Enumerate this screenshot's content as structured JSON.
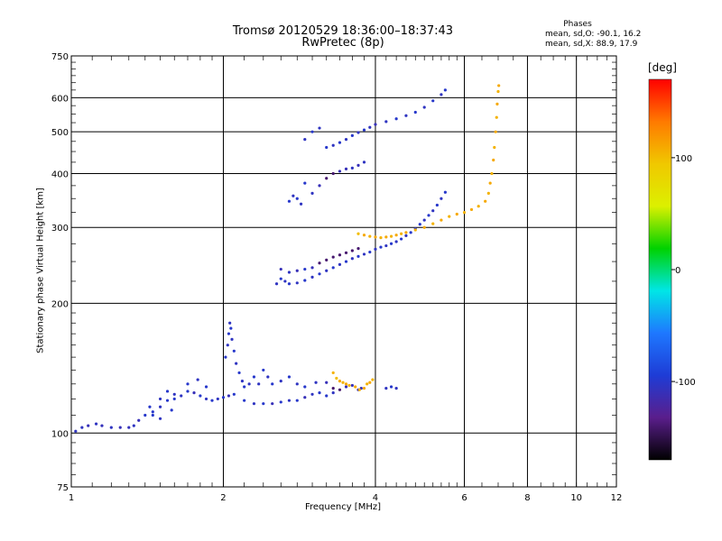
{
  "chart_data": {
    "type": "scatter",
    "title": "Tromsø 20120529 18:36:00–18:37:43",
    "subtitle": "RwPretec (8p)",
    "xlabel": "Frequency [MHz]",
    "ylabel": "Stationary phase Virtual Height [km]",
    "xscale": "log",
    "yscale": "log",
    "xlim": [
      1,
      12
    ],
    "ylim": [
      75,
      750
    ],
    "x_ticks": [
      "1",
      "2",
      "4",
      "6",
      "8",
      "10",
      "12"
    ],
    "y_ticks": [
      "75",
      "100",
      "200",
      "300",
      "400",
      "500",
      "600",
      "750"
    ],
    "grid": true,
    "color_scale": {
      "label": "[deg]",
      "min": -170,
      "max": 170,
      "ticks": [
        "100",
        "0",
        "-100"
      ],
      "palette": [
        "#000000",
        "#5a1e8c",
        "#1e3cd6",
        "#1e78ff",
        "#00e6e6",
        "#00d200",
        "#dcf000",
        "#f0c800",
        "#ff7a00",
        "#ff0000"
      ]
    },
    "phases": {
      "title": "Phases",
      "line1": "mean, sd,O:  -90.1, 16.2",
      "line2": "mean, sd,X:  88.9, 17.9"
    },
    "series": [
      {
        "points": [
          [
            1.02,
            101,
            -105
          ],
          [
            1.05,
            103,
            -105
          ],
          [
            1.08,
            104,
            -110
          ],
          [
            1.12,
            105,
            -105
          ],
          [
            1.15,
            104,
            -108
          ],
          [
            1.2,
            103,
            -105
          ],
          [
            1.25,
            103,
            -110
          ],
          [
            1.3,
            103,
            -108
          ],
          [
            1.33,
            104,
            -105
          ],
          [
            1.36,
            107,
            -110
          ],
          [
            1.4,
            110,
            -100
          ],
          [
            1.45,
            112,
            -100
          ],
          [
            1.5,
            115,
            -105
          ],
          [
            1.55,
            119,
            -100
          ],
          [
            1.6,
            120,
            -100
          ],
          [
            1.65,
            122,
            -105
          ],
          [
            1.7,
            125,
            -100
          ],
          [
            1.75,
            124,
            -110
          ],
          [
            1.8,
            122,
            -100
          ],
          [
            1.85,
            120,
            -105
          ],
          [
            1.9,
            119,
            -100
          ],
          [
            1.95,
            120,
            -105
          ],
          [
            2.0,
            121,
            -100
          ],
          [
            2.05,
            122,
            -110
          ],
          [
            2.1,
            123,
            -100
          ],
          [
            2.2,
            119,
            -100
          ],
          [
            2.3,
            117,
            -105
          ],
          [
            2.4,
            117,
            -100
          ],
          [
            2.5,
            117,
            -110
          ],
          [
            2.6,
            118,
            -100
          ],
          [
            2.7,
            119,
            -105
          ],
          [
            2.8,
            119,
            -100
          ],
          [
            2.9,
            121,
            -110
          ],
          [
            3.0,
            123,
            -105
          ],
          [
            3.1,
            124,
            -100
          ],
          [
            3.2,
            122,
            -100
          ],
          [
            3.3,
            124,
            -105
          ],
          [
            1.43,
            115,
            -100
          ],
          [
            1.5,
            120,
            -105
          ],
          [
            1.55,
            125,
            -100
          ],
          [
            1.6,
            123,
            -105
          ],
          [
            1.7,
            130,
            -100
          ],
          [
            1.78,
            133,
            -105
          ],
          [
            1.85,
            128,
            -100
          ],
          [
            2.02,
            150,
            -100
          ],
          [
            2.04,
            160,
            -105
          ],
          [
            2.05,
            170,
            -100
          ],
          [
            2.06,
            180,
            -105
          ],
          [
            2.07,
            175,
            -100
          ],
          [
            2.08,
            165,
            -105
          ],
          [
            2.1,
            155,
            -100
          ],
          [
            2.12,
            145,
            -105
          ],
          [
            2.15,
            138,
            -100
          ],
          [
            2.18,
            132,
            -105
          ],
          [
            2.2,
            128,
            -100
          ],
          [
            2.25,
            130,
            -105
          ],
          [
            2.3,
            135,
            -100
          ],
          [
            2.35,
            130,
            -105
          ],
          [
            2.4,
            140,
            -100
          ],
          [
            2.45,
            135,
            -105
          ],
          [
            2.5,
            130,
            -100
          ],
          [
            2.6,
            132,
            -105
          ],
          [
            2.7,
            135,
            -100
          ],
          [
            2.8,
            130,
            -105
          ],
          [
            2.9,
            128,
            -100
          ],
          [
            3.05,
            131,
            -105
          ],
          [
            3.2,
            131,
            -110
          ],
          [
            3.3,
            127,
            -140
          ],
          [
            3.4,
            126,
            -140
          ],
          [
            3.5,
            128,
            -110
          ],
          [
            3.6,
            129,
            -110
          ],
          [
            3.7,
            126,
            -110
          ],
          [
            3.75,
            127,
            -110
          ],
          [
            4.2,
            127,
            -105
          ],
          [
            4.3,
            128,
            -100
          ],
          [
            4.4,
            127,
            -105
          ],
          [
            1.45,
            110,
            -100
          ],
          [
            1.5,
            108,
            -105
          ],
          [
            1.58,
            113,
            -100
          ]
        ]
      },
      {
        "points": [
          [
            3.35,
            134,
            100
          ],
          [
            3.4,
            132,
            110
          ],
          [
            3.45,
            131,
            105
          ],
          [
            3.5,
            130,
            110
          ],
          [
            3.55,
            129,
            105
          ],
          [
            3.65,
            128,
            110
          ],
          [
            3.72,
            126,
            105
          ],
          [
            3.8,
            127,
            110
          ],
          [
            3.85,
            130,
            105
          ],
          [
            3.9,
            131,
            110
          ],
          [
            3.95,
            133,
            105
          ],
          [
            3.3,
            138,
            105
          ]
        ]
      },
      {
        "points": [
          [
            2.55,
            222,
            -105
          ],
          [
            2.6,
            228,
            -100
          ],
          [
            2.65,
            225,
            -105
          ],
          [
            2.7,
            222,
            -100
          ],
          [
            2.8,
            223,
            -105
          ],
          [
            2.9,
            226,
            -100
          ],
          [
            3.0,
            230,
            -105
          ],
          [
            3.1,
            234,
            -100
          ],
          [
            3.2,
            238,
            -105
          ],
          [
            3.3,
            242,
            -100
          ],
          [
            3.4,
            246,
            -105
          ],
          [
            3.5,
            250,
            -100
          ],
          [
            3.6,
            254,
            -105
          ],
          [
            3.7,
            257,
            -100
          ],
          [
            3.8,
            260,
            -105
          ],
          [
            3.9,
            263,
            -100
          ],
          [
            4.0,
            267,
            -105
          ],
          [
            4.1,
            270,
            -100
          ],
          [
            4.2,
            272,
            -105
          ],
          [
            4.3,
            275,
            -100
          ],
          [
            4.4,
            278,
            -105
          ],
          [
            4.5,
            282,
            -100
          ],
          [
            4.6,
            287,
            -105
          ],
          [
            4.7,
            292,
            -100
          ],
          [
            4.8,
            298,
            -105
          ],
          [
            4.9,
            305,
            -100
          ],
          [
            5.0,
            312,
            -105
          ],
          [
            5.1,
            320,
            -100
          ],
          [
            5.2,
            328,
            -105
          ],
          [
            5.3,
            338,
            -100
          ],
          [
            5.4,
            350,
            -105
          ],
          [
            5.5,
            362,
            -100
          ],
          [
            2.6,
            240,
            -110
          ],
          [
            2.7,
            236,
            -105
          ],
          [
            2.8,
            238,
            -110
          ],
          [
            2.9,
            240,
            -100
          ],
          [
            3.0,
            242,
            -110
          ],
          [
            3.1,
            248,
            -140
          ],
          [
            3.2,
            252,
            -140
          ],
          [
            3.3,
            256,
            -140
          ],
          [
            3.4,
            259,
            -140
          ],
          [
            3.5,
            262,
            -140
          ],
          [
            3.6,
            265,
            -140
          ],
          [
            3.7,
            268,
            -140
          ]
        ]
      },
      {
        "points": [
          [
            3.7,
            290,
            100
          ],
          [
            3.8,
            288,
            110
          ],
          [
            3.9,
            286,
            105
          ],
          [
            4.0,
            285,
            110
          ],
          [
            4.1,
            284,
            105
          ],
          [
            4.2,
            285,
            110
          ],
          [
            4.3,
            286,
            105
          ],
          [
            4.4,
            288,
            110
          ],
          [
            4.5,
            290,
            105
          ],
          [
            4.6,
            292,
            110
          ],
          [
            4.8,
            296,
            105
          ],
          [
            5.0,
            300,
            110
          ],
          [
            5.2,
            306,
            105
          ],
          [
            5.4,
            312,
            110
          ],
          [
            5.6,
            318,
            105
          ],
          [
            5.8,
            322,
            110
          ],
          [
            6.0,
            325,
            105
          ],
          [
            6.2,
            330,
            110
          ],
          [
            6.4,
            336,
            105
          ],
          [
            6.6,
            345,
            110
          ],
          [
            6.7,
            360,
            105
          ],
          [
            6.75,
            380,
            110
          ],
          [
            6.8,
            400,
            105
          ],
          [
            6.85,
            430,
            110
          ],
          [
            6.88,
            460,
            105
          ],
          [
            6.92,
            500,
            110
          ],
          [
            6.95,
            540,
            105
          ],
          [
            6.97,
            580,
            110
          ],
          [
            7.0,
            620,
            105
          ],
          [
            7.02,
            640,
            110
          ]
        ]
      },
      {
        "points": [
          [
            2.7,
            345,
            -100
          ],
          [
            2.75,
            355,
            -105
          ],
          [
            2.8,
            350,
            -100
          ],
          [
            2.85,
            340,
            -105
          ],
          [
            2.9,
            380,
            -100
          ],
          [
            3.0,
            360,
            -105
          ],
          [
            3.1,
            375,
            -110
          ],
          [
            3.2,
            390,
            -140
          ],
          [
            3.3,
            400,
            -140
          ],
          [
            3.4,
            405,
            -110
          ],
          [
            3.5,
            410,
            -110
          ],
          [
            3.6,
            412,
            -105
          ],
          [
            3.7,
            418,
            -110
          ],
          [
            3.8,
            425,
            -105
          ],
          [
            3.2,
            460,
            -100
          ],
          [
            3.3,
            465,
            -105
          ],
          [
            3.4,
            472,
            -100
          ],
          [
            3.5,
            480,
            -105
          ],
          [
            3.6,
            490,
            -100
          ],
          [
            3.7,
            498,
            -105
          ],
          [
            3.8,
            505,
            -100
          ],
          [
            3.9,
            512,
            -105
          ],
          [
            4.0,
            520,
            -110
          ],
          [
            4.2,
            528,
            -105
          ],
          [
            4.4,
            536,
            -100
          ],
          [
            4.6,
            545,
            -105
          ],
          [
            4.8,
            555,
            -100
          ],
          [
            5.0,
            570,
            -105
          ],
          [
            5.2,
            590,
            -100
          ],
          [
            5.4,
            610,
            -105
          ],
          [
            5.5,
            625,
            -100
          ],
          [
            2.9,
            480,
            -105
          ],
          [
            3.0,
            500,
            -100
          ],
          [
            3.1,
            510,
            -105
          ]
        ]
      }
    ]
  }
}
